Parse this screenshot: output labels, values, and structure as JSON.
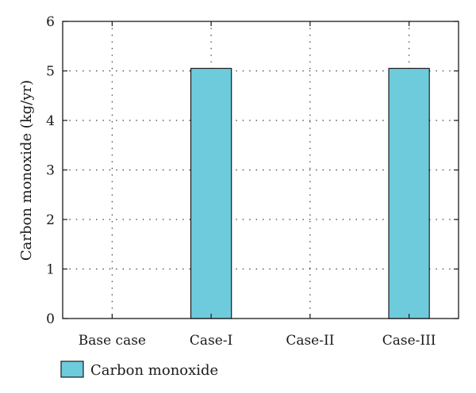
{
  "chart_data": {
    "type": "bar",
    "categories": [
      "Base case",
      "Case-I",
      "Case-II",
      "Case-III"
    ],
    "series": [
      {
        "name": "Carbon monoxide",
        "values": [
          0,
          5.05,
          0,
          5.05
        ],
        "color": "#6ecbdc"
      }
    ],
    "title": "",
    "xlabel": "",
    "ylabel": "Carbon monoxide (kg/yr)",
    "ylim": [
      0,
      6
    ],
    "yticks": [
      0,
      1,
      2,
      3,
      4,
      5,
      6
    ],
    "grid": true,
    "grid_style": "dotted",
    "legend": {
      "placement": "bottom-left",
      "label": "Carbon monoxide",
      "color": "#6ecbdc"
    }
  }
}
